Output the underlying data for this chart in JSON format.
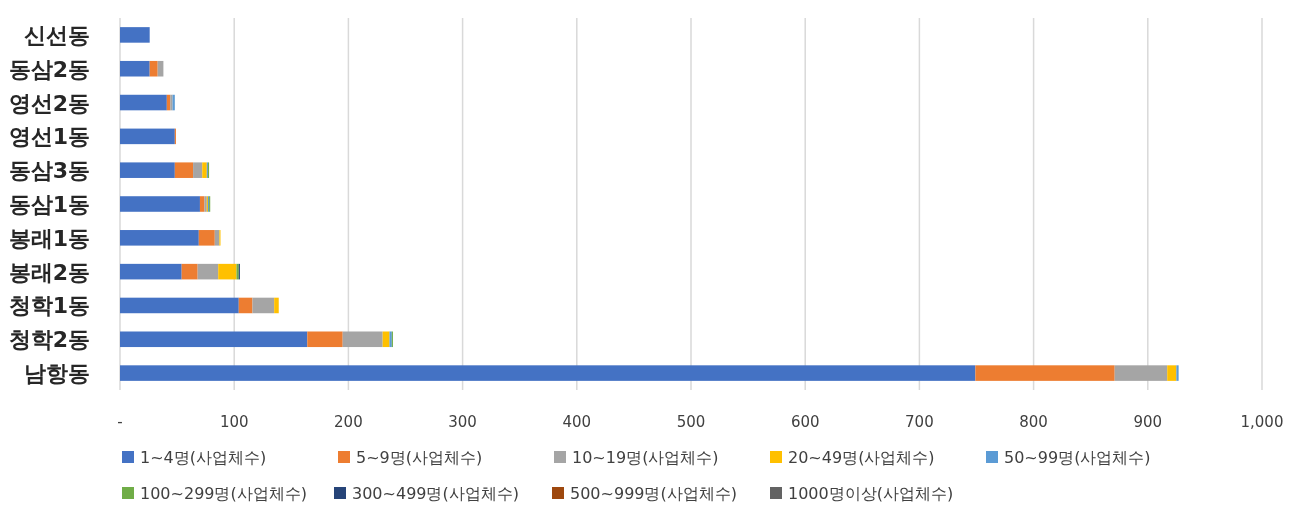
{
  "chart_data": {
    "type": "bar",
    "orientation": "horizontal",
    "stacked": true,
    "categories": [
      "신선동",
      "동삼2동",
      "영선2동",
      "영선1동",
      "동삼3동",
      "동삼1동",
      "봉래1동",
      "봉래2동",
      "청학1동",
      "청학2동",
      "남항동"
    ],
    "xlim": [
      0,
      1000
    ],
    "xticks": [
      {
        "value": 0,
        "label": "-"
      },
      100,
      200,
      300,
      400,
      500,
      600,
      700,
      800,
      900,
      {
        "value": 1000,
        "label": "1,000"
      }
    ],
    "grid": "x",
    "legend": "bottom",
    "series": [
      {
        "name": "1~4명(사업체수)",
        "color": "#4472c4",
        "values": [
          26,
          26,
          41,
          48,
          48,
          70,
          69,
          54,
          104,
          164,
          749
        ]
      },
      {
        "name": "5~9명(사업체수)",
        "color": "#ed7d31",
        "values": [
          0,
          7,
          3,
          1,
          16,
          4,
          14,
          14,
          12,
          31,
          122
        ]
      },
      {
        "name": "10~19명(사업체수)",
        "color": "#a5a5a5",
        "values": [
          0,
          5,
          2,
          0,
          8,
          2,
          4,
          18,
          19,
          35,
          46
        ]
      },
      {
        "name": "20~49명(사업체수)",
        "color": "#ffc000",
        "values": [
          0,
          0,
          0,
          0,
          4,
          1,
          1,
          16,
          4,
          6,
          8
        ]
      },
      {
        "name": "50~99명(사업체수)",
        "color": "#5b9bd5",
        "values": [
          0,
          0,
          2,
          0,
          1,
          1,
          0,
          0,
          0,
          2,
          2
        ]
      },
      {
        "name": "100~299명(사업체수)",
        "color": "#70ad47",
        "values": [
          0,
          0,
          0,
          0,
          1,
          1,
          0,
          2,
          0,
          1,
          0
        ]
      },
      {
        "name": "300~499명(사업체수)",
        "color": "#264478",
        "values": [
          0,
          0,
          0,
          0,
          0,
          0,
          0,
          1,
          0,
          0,
          0
        ]
      },
      {
        "name": "500~999명(사업체수)",
        "color": "#9e480e",
        "values": [
          0,
          0,
          0,
          0,
          0,
          0,
          0,
          0,
          0,
          0,
          0
        ]
      },
      {
        "name": "1000명이상(사업체수)",
        "color": "#636363",
        "values": [
          0,
          0,
          0,
          0,
          0,
          0,
          0,
          0,
          0,
          0,
          0
        ]
      }
    ]
  }
}
